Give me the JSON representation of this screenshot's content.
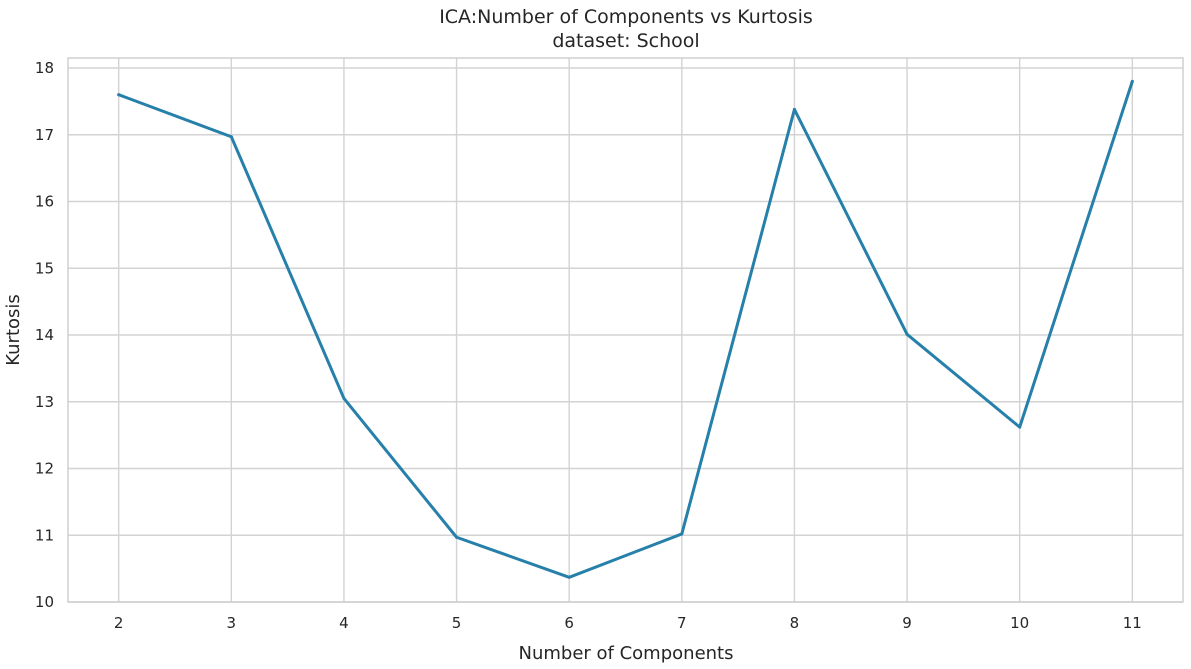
{
  "chart_data": {
    "type": "line",
    "title": "ICA:Number of Components vs Kurtosis",
    "subtitle": "dataset: School",
    "xlabel": "Number of Components",
    "ylabel": "Kurtosis",
    "x": [
      2,
      3,
      4,
      5,
      6,
      7,
      8,
      9,
      10,
      11
    ],
    "series": [
      {
        "values": [
          17.6,
          16.97,
          13.05,
          10.97,
          10.37,
          11.02,
          17.38,
          14.01,
          12.62,
          17.8
        ]
      }
    ],
    "xlim": [
      1.55,
      11.45
    ],
    "ylim": [
      10.0,
      18.15
    ],
    "xticks": [
      "2",
      "3",
      "4",
      "5",
      "6",
      "7",
      "8",
      "9",
      "10",
      "11"
    ],
    "yticks": [
      "10",
      "11",
      "12",
      "13",
      "14",
      "15",
      "16",
      "17",
      "18"
    ],
    "grid": true,
    "line_color": "#2680aa"
  }
}
